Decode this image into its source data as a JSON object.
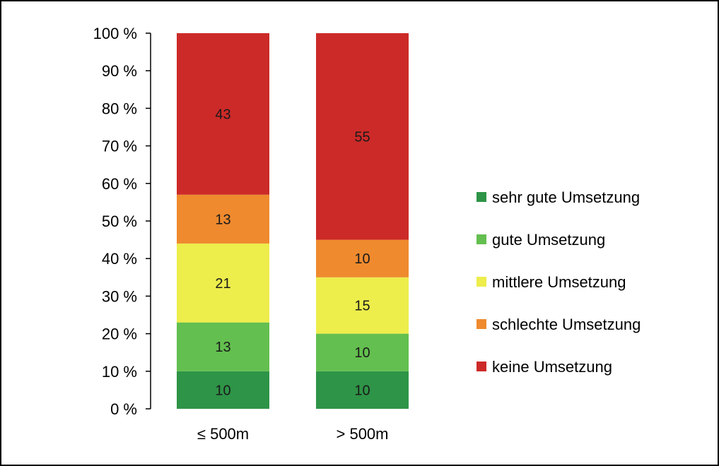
{
  "chart_data": {
    "type": "bar",
    "stacked": true,
    "categories": [
      "≤ 500m",
      "> 500m"
    ],
    "series": [
      {
        "name": "sehr gute Umsetzung",
        "color": "#2e9447",
        "values": [
          10,
          10
        ]
      },
      {
        "name": "gute Umsetzung",
        "color": "#63bf4f",
        "values": [
          13,
          10
        ]
      },
      {
        "name": "mittlere Umsetzung",
        "color": "#eded4c",
        "values": [
          21,
          15
        ]
      },
      {
        "name": "schlechte Umsetzung",
        "color": "#ef8a2e",
        "values": [
          13,
          10
        ]
      },
      {
        "name": "keine Umsetzung",
        "color": "#cc2a28",
        "values": [
          43,
          55
        ]
      }
    ],
    "ylim": [
      0,
      100
    ],
    "yticks": [
      0,
      10,
      20,
      30,
      40,
      50,
      60,
      70,
      80,
      90,
      100
    ],
    "ytick_labels": [
      "0 %",
      "10 %",
      "20 %",
      "30 %",
      "40 %",
      "50 %",
      "60 %",
      "70 %",
      "80 %",
      "90 %",
      "100 %"
    ],
    "legend": {
      "position": "right",
      "order": "keine-last"
    },
    "grid": false,
    "title": "",
    "xlabel": "",
    "ylabel": ""
  }
}
